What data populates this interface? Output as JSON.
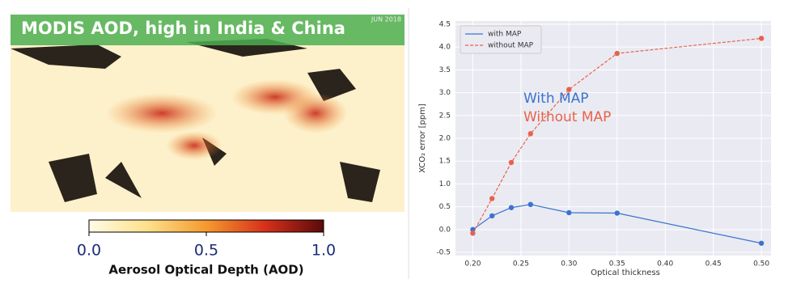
{
  "map_panel": {
    "title": "MODIS AOD, high in India & China",
    "date": "JUN 2018",
    "colorbar": {
      "ticks": [
        {
          "value": 0,
          "label": "0.0"
        },
        0.5,
        {
          "value": 1,
          "label": "1.0"
        }
      ],
      "label": "Aerosol Optical Depth (AOD)"
    }
  },
  "chart_data": {
    "type": "line",
    "xlabel": "Optical thickness",
    "ylabel": "XCO₂ error [ppm]",
    "x": [
      0.2,
      0.22,
      0.24,
      0.26,
      0.3,
      0.35,
      0.5
    ],
    "series": [
      {
        "name": "with MAP",
        "color": "#3a73cf",
        "dash": false,
        "values": [
          0.0,
          0.3,
          0.48,
          0.55,
          0.37,
          0.36,
          -0.3
        ]
      },
      {
        "name": "without MAP",
        "color": "#e8624b",
        "dash": true,
        "values": [
          -0.08,
          0.68,
          1.47,
          2.1,
          3.07,
          3.86,
          4.19
        ]
      }
    ],
    "annotations": [
      {
        "text": "With MAP",
        "color": "#3a73cf"
      },
      {
        "text": "Without MAP",
        "color": "#e8624b"
      }
    ],
    "xlim": [
      0.182,
      0.51
    ],
    "xticks": [
      {
        "value": 0.2,
        "label": "0.20"
      },
      0.25,
      {
        "value": 0.3,
        "label": "0.30"
      },
      0.35,
      {
        "value": 0.4,
        "label": "0.40"
      },
      0.45,
      {
        "value": 0.5,
        "label": "0.50"
      }
    ],
    "ylim": [
      -0.57,
      4.57
    ],
    "yticks": [
      -0.5,
      {
        "value": 0,
        "label": "0.0"
      },
      0.5,
      {
        "value": 1,
        "label": "1.0"
      },
      1.5,
      {
        "value": 2,
        "label": "2.0"
      },
      2.5,
      {
        "value": 3,
        "label": "3.0"
      },
      3.5,
      {
        "value": 4,
        "label": "4.0"
      },
      4.5
    ],
    "grid": true,
    "legend": "upper left",
    "background": "#eaeaf2"
  }
}
